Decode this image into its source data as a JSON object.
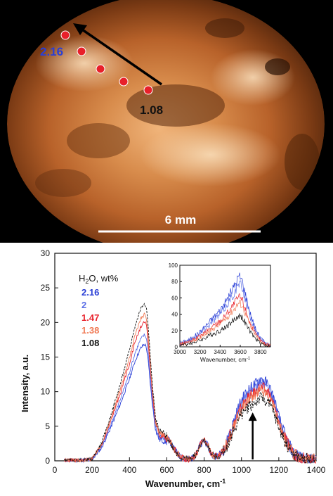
{
  "photo": {
    "scale_bar_label": "6 mm",
    "label_top": "2.16",
    "label_bottom": "1.08",
    "colors": {
      "label_top": "#2a3fd6",
      "label_bottom": "#111111",
      "marker_fill": "#e8202a",
      "arrow": "#000000"
    }
  },
  "chart_data": [
    {
      "type": "line",
      "xlabel": "Wavenumber, cm",
      "xlabel_sup": "-1",
      "ylabel": "Intensity, a.u.",
      "xlim": [
        0,
        1400
      ],
      "ylim": [
        0,
        30
      ],
      "xticks": [
        "0",
        "200",
        "400",
        "600",
        "800",
        "1000",
        "1200",
        "1400"
      ],
      "yticks": [
        "0",
        "5",
        "10",
        "15",
        "20",
        "25",
        "30"
      ],
      "legend_title": "H",
      "legend_title_sub": "2",
      "legend_title_rest": "O, wt%",
      "legend_placement": "top-left",
      "series": [
        {
          "name": "2.16",
          "color": "#2a3fd6",
          "scale": 0.74,
          "hf": 1.12
        },
        {
          "name": "2",
          "color": "#5a6ee6",
          "scale": 0.8,
          "hf": 1.05
        },
        {
          "name": "1.47",
          "color": "#e8202a",
          "scale": 0.88,
          "hf": 1.0
        },
        {
          "name": "1.38",
          "color": "#f07a55",
          "scale": 0.93,
          "hf": 0.96
        },
        {
          "name": "1.08",
          "color": "#111111",
          "scale": 1.0,
          "hf": 0.86
        }
      ],
      "base_x": [
        50,
        150,
        200,
        250,
        300,
        350,
        400,
        430,
        460,
        480,
        490,
        500,
        520,
        540,
        560,
        580,
        600,
        620,
        640,
        660,
        680,
        700,
        720,
        740,
        760,
        780,
        800,
        820,
        840,
        860,
        880,
        900,
        920,
        940,
        960,
        980,
        1000,
        1020,
        1040,
        1060,
        1080,
        1100,
        1120,
        1140,
        1160,
        1180,
        1200,
        1240,
        1280,
        1320,
        1360,
        1400
      ],
      "base_y": [
        0.1,
        0.1,
        0.3,
        2.5,
        6.5,
        11.0,
        16.0,
        19.5,
        22.0,
        22.8,
        22.3,
        19.5,
        12.0,
        6.0,
        4.2,
        4.0,
        3.6,
        2.8,
        1.8,
        1.0,
        0.5,
        0.3,
        0.3,
        0.5,
        1.2,
        2.5,
        3.2,
        2.3,
        1.0,
        0.6,
        0.8,
        1.4,
        2.4,
        3.8,
        5.2,
        6.6,
        7.8,
        8.6,
        9.2,
        9.6,
        10.0,
        10.6,
        10.4,
        9.8,
        9.0,
        7.5,
        5.6,
        2.8,
        1.0,
        0.4,
        0.2,
        0.1
      ],
      "arrow_x": 1060,
      "arrow_y": [
        0,
        7
      ]
    },
    {
      "type": "line",
      "inset": true,
      "xlabel": "Wavenumber, cm",
      "xlabel_sup": "-1",
      "xlim": [
        3000,
        3900
      ],
      "ylim": [
        0,
        100
      ],
      "xticks": [
        "3000",
        "3200",
        "3400",
        "3600",
        "3800"
      ],
      "yticks": [
        "0",
        "20",
        "40",
        "60",
        "80",
        "100"
      ],
      "inset_x": [
        3000,
        3100,
        3200,
        3300,
        3400,
        3450,
        3500,
        3550,
        3580,
        3600,
        3620,
        3650,
        3700,
        3750,
        3800,
        3850,
        3900
      ],
      "inset_base": [
        2,
        4,
        8,
        14,
        20,
        24,
        29,
        34,
        38,
        38,
        36,
        29,
        18,
        10,
        5,
        2,
        1
      ],
      "inset_scales": [
        2.25,
        2.0,
        1.6,
        1.4,
        1.0
      ]
    }
  ]
}
